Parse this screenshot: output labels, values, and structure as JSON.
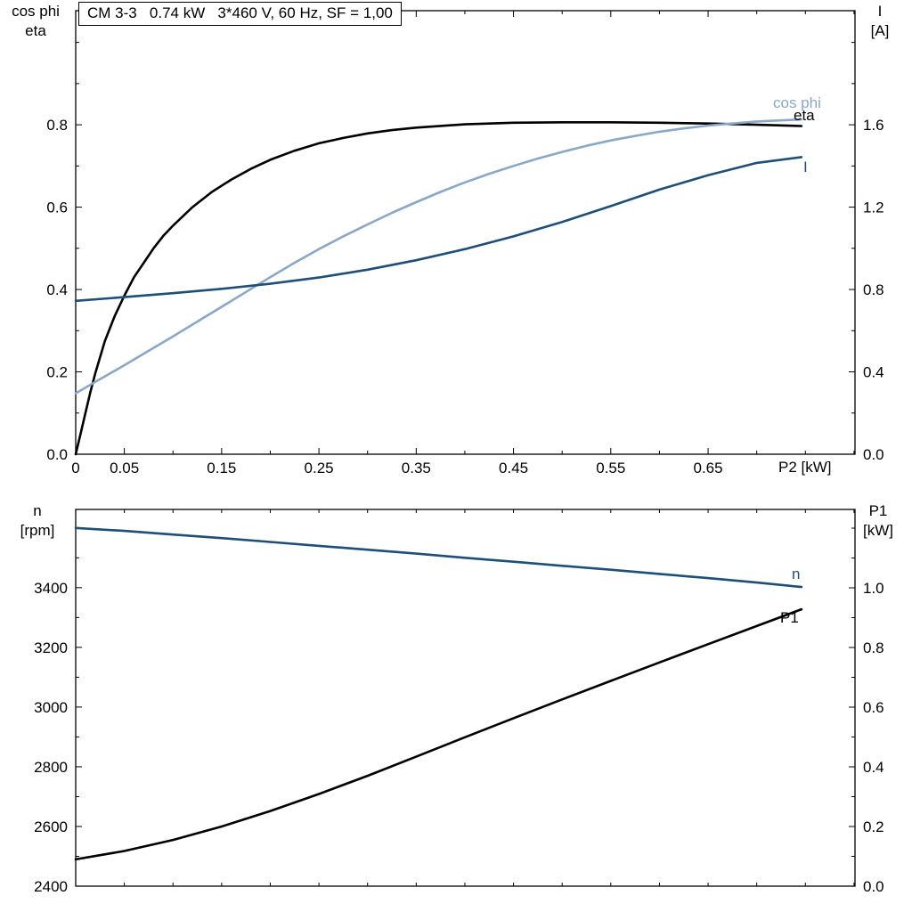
{
  "title_box": "CM 3-3   0.74 kW   3*460 V, 60 Hz, SF = 1,00",
  "colors": {
    "black": "#000000",
    "dark_blue": "#1f4e79",
    "light_blue": "#8aa7c7",
    "frame": "#000000"
  },
  "axis_labels": {
    "top_left_line1": "cos phi",
    "top_left_line2": "eta",
    "top_right_line1": "I",
    "top_right_line2": "[A]",
    "x_label": "P2 [kW]",
    "bottom_left_line1": "n",
    "bottom_left_line2": "[rpm]",
    "bottom_right_line1": "P1",
    "bottom_right_line2": "[kW]"
  },
  "curve_labels": {
    "cos_phi": "cos phi",
    "eta": "eta",
    "current": "I",
    "speed": "n",
    "power_in": "P1"
  },
  "chart_data": [
    {
      "name": "motor-electrical-chart",
      "type": "line",
      "title": "CM 3-3   0.74 kW   3*460 V, 60 Hz, SF = 1,00",
      "x_axis": {
        "label": "P2 [kW]",
        "min": 0,
        "max": 0.801,
        "ticks": [
          {
            "v": 0,
            "label": "0"
          },
          {
            "v": 0.05,
            "label": "0.05"
          },
          {
            "v": 0.15,
            "label": "0.15"
          },
          {
            "v": 0.25,
            "label": "0.25"
          },
          {
            "v": 0.35,
            "label": "0.35"
          },
          {
            "v": 0.45,
            "label": "0.45"
          },
          {
            "v": 0.55,
            "label": "0.55"
          },
          {
            "v": 0.65,
            "label": "0.65"
          }
        ],
        "minor": [
          0.1,
          0.2,
          0.3,
          0.4,
          0.5,
          0.6,
          0.7,
          0.75,
          0.8
        ]
      },
      "y_left": {
        "label": "cos phi / eta",
        "min": 0,
        "max": 1.077,
        "ticks": [
          {
            "v": 0.0,
            "label": "0.0"
          },
          {
            "v": 0.2,
            "label": "0.2"
          },
          {
            "v": 0.4,
            "label": "0.4"
          },
          {
            "v": 0.6,
            "label": "0.6"
          },
          {
            "v": 0.8,
            "label": "0.8"
          }
        ],
        "minor": [
          0.1,
          0.3,
          0.5,
          0.7,
          0.9,
          1.0
        ]
      },
      "y_right": {
        "label": "I [A]",
        "min": 0,
        "max": 2.154,
        "ticks": [
          {
            "v": 0.0,
            "label": "0.0"
          },
          {
            "v": 0.4,
            "label": "0.4"
          },
          {
            "v": 0.8,
            "label": "0.8"
          },
          {
            "v": 1.2,
            "label": "1.2"
          },
          {
            "v": 1.6,
            "label": "1.6"
          }
        ],
        "minor": [
          0.2,
          0.6,
          1.0,
          1.4,
          1.8,
          2.0
        ]
      },
      "series": [
        {
          "name": "eta",
          "color": "black",
          "axis": "left",
          "points": [
            [
              0,
              0
            ],
            [
              0.005,
              0.05
            ],
            [
              0.01,
              0.1
            ],
            [
              0.015,
              0.15
            ],
            [
              0.02,
              0.195
            ],
            [
              0.03,
              0.275
            ],
            [
              0.04,
              0.335
            ],
            [
              0.05,
              0.385
            ],
            [
              0.06,
              0.43
            ],
            [
              0.07,
              0.465
            ],
            [
              0.08,
              0.5
            ],
            [
              0.09,
              0.53
            ],
            [
              0.1,
              0.555
            ],
            [
              0.12,
              0.6
            ],
            [
              0.14,
              0.637
            ],
            [
              0.16,
              0.667
            ],
            [
              0.18,
              0.693
            ],
            [
              0.2,
              0.715
            ],
            [
              0.225,
              0.737
            ],
            [
              0.25,
              0.755
            ],
            [
              0.275,
              0.768
            ],
            [
              0.3,
              0.779
            ],
            [
              0.325,
              0.787
            ],
            [
              0.35,
              0.793
            ],
            [
              0.4,
              0.801
            ],
            [
              0.45,
              0.805
            ],
            [
              0.5,
              0.806
            ],
            [
              0.55,
              0.806
            ],
            [
              0.6,
              0.805
            ],
            [
              0.65,
              0.803
            ],
            [
              0.7,
              0.8
            ],
            [
              0.746,
              0.797
            ]
          ]
        },
        {
          "name": "cos-phi",
          "color": "light_blue",
          "axis": "left",
          "points": [
            [
              0,
              0.148
            ],
            [
              0.025,
              0.182
            ],
            [
              0.05,
              0.216
            ],
            [
              0.075,
              0.251
            ],
            [
              0.1,
              0.286
            ],
            [
              0.125,
              0.322
            ],
            [
              0.15,
              0.358
            ],
            [
              0.175,
              0.394
            ],
            [
              0.2,
              0.43
            ],
            [
              0.225,
              0.465
            ],
            [
              0.25,
              0.498
            ],
            [
              0.275,
              0.529
            ],
            [
              0.3,
              0.558
            ],
            [
              0.325,
              0.586
            ],
            [
              0.35,
              0.612
            ],
            [
              0.375,
              0.637
            ],
            [
              0.4,
              0.66
            ],
            [
              0.425,
              0.681
            ],
            [
              0.45,
              0.7
            ],
            [
              0.475,
              0.718
            ],
            [
              0.5,
              0.734
            ],
            [
              0.525,
              0.749
            ],
            [
              0.55,
              0.762
            ],
            [
              0.575,
              0.773
            ],
            [
              0.6,
              0.783
            ],
            [
              0.625,
              0.791
            ],
            [
              0.65,
              0.798
            ],
            [
              0.675,
              0.803
            ],
            [
              0.7,
              0.808
            ],
            [
              0.746,
              0.813
            ]
          ]
        },
        {
          "name": "current-I",
          "color": "dark_blue",
          "axis": "right",
          "points": [
            [
              0,
              0.745
            ],
            [
              0.05,
              0.763
            ],
            [
              0.1,
              0.782
            ],
            [
              0.15,
              0.803
            ],
            [
              0.2,
              0.828
            ],
            [
              0.25,
              0.858
            ],
            [
              0.3,
              0.896
            ],
            [
              0.35,
              0.942
            ],
            [
              0.4,
              0.996
            ],
            [
              0.45,
              1.058
            ],
            [
              0.5,
              1.128
            ],
            [
              0.55,
              1.205
            ],
            [
              0.6,
              1.285
            ],
            [
              0.65,
              1.355
            ],
            [
              0.7,
              1.415
            ],
            [
              0.746,
              1.443
            ]
          ]
        }
      ]
    },
    {
      "name": "motor-mechanical-chart",
      "type": "line",
      "title": "",
      "x_axis": {
        "label": "",
        "min": 0,
        "max": 0.801,
        "ticks": [],
        "minor": [
          0.05,
          0.1,
          0.15,
          0.2,
          0.25,
          0.3,
          0.35,
          0.4,
          0.45,
          0.5,
          0.55,
          0.6,
          0.65,
          0.7,
          0.75,
          0.8
        ]
      },
      "y_left": {
        "label": "n [rpm]",
        "min": 2400,
        "max": 3662,
        "ticks": [
          {
            "v": 2400,
            "label": "2400"
          },
          {
            "v": 2600,
            "label": "2600"
          },
          {
            "v": 2800,
            "label": "2800"
          },
          {
            "v": 3000,
            "label": "3000"
          },
          {
            "v": 3200,
            "label": "3200"
          },
          {
            "v": 3400,
            "label": "3400"
          }
        ],
        "minor": [
          2500,
          2700,
          2900,
          3100,
          3300,
          3500,
          3600
        ]
      },
      "y_right": {
        "label": "P1 [kW]",
        "min": 0,
        "max": 1.2627,
        "ticks": [
          {
            "v": 0.0,
            "label": "0.0"
          },
          {
            "v": 0.2,
            "label": "0.2"
          },
          {
            "v": 0.4,
            "label": "0.4"
          },
          {
            "v": 0.6,
            "label": "0.6"
          },
          {
            "v": 0.8,
            "label": "0.8"
          },
          {
            "v": 1.0,
            "label": "1.0"
          }
        ],
        "minor": [
          0.1,
          0.3,
          0.5,
          0.7,
          0.9,
          1.1,
          1.2
        ]
      },
      "series": [
        {
          "name": "speed-n",
          "color": "dark_blue",
          "axis": "left",
          "points": [
            [
              0,
              3600
            ],
            [
              0.05,
              3590
            ],
            [
              0.1,
              3578
            ],
            [
              0.15,
              3566
            ],
            [
              0.2,
              3553
            ],
            [
              0.25,
              3540
            ],
            [
              0.3,
              3527
            ],
            [
              0.35,
              3514
            ],
            [
              0.4,
              3500
            ],
            [
              0.45,
              3487
            ],
            [
              0.5,
              3473
            ],
            [
              0.55,
              3460
            ],
            [
              0.6,
              3446
            ],
            [
              0.65,
              3432
            ],
            [
              0.7,
              3417
            ],
            [
              0.746,
              3402
            ]
          ]
        },
        {
          "name": "power-in-P1",
          "color": "black",
          "axis": "right",
          "points": [
            [
              0,
              0.09
            ],
            [
              0.05,
              0.118
            ],
            [
              0.1,
              0.155
            ],
            [
              0.15,
              0.2
            ],
            [
              0.2,
              0.252
            ],
            [
              0.25,
              0.309
            ],
            [
              0.3,
              0.37
            ],
            [
              0.35,
              0.434
            ],
            [
              0.4,
              0.499
            ],
            [
              0.45,
              0.563
            ],
            [
              0.5,
              0.626
            ],
            [
              0.55,
              0.688
            ],
            [
              0.6,
              0.75
            ],
            [
              0.65,
              0.811
            ],
            [
              0.7,
              0.872
            ],
            [
              0.746,
              0.928
            ]
          ]
        }
      ]
    }
  ]
}
